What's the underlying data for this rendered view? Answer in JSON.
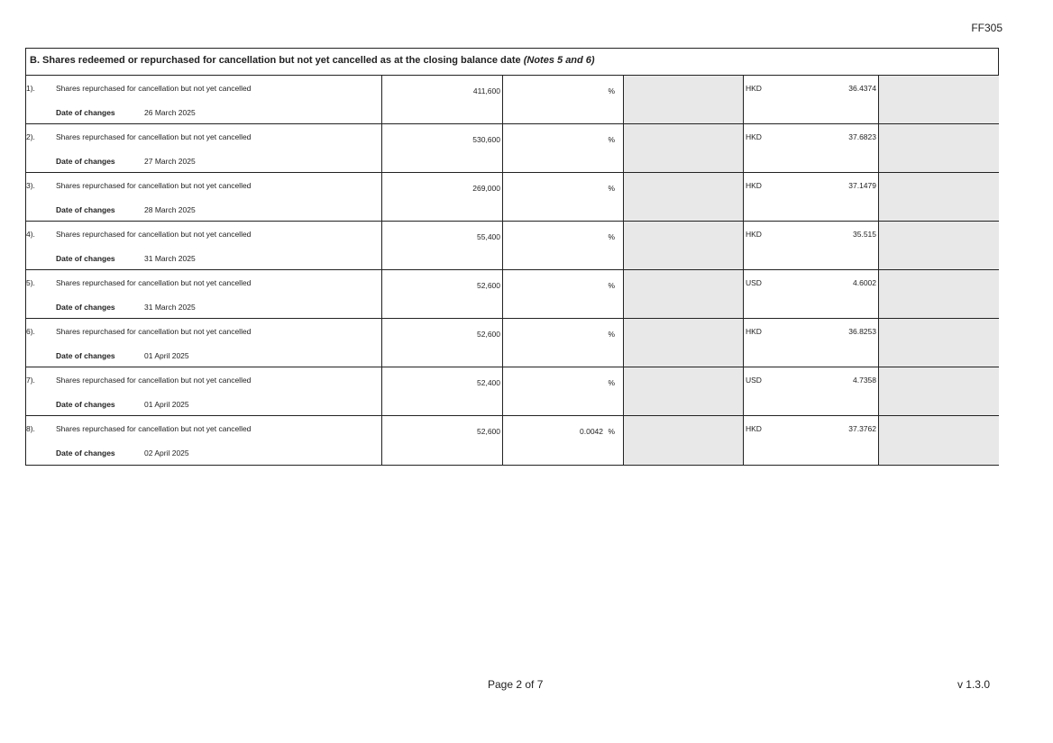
{
  "form_code": "FF305",
  "section": {
    "title": "B. Shares redeemed or repurchased for cancellation but not yet cancelled as at the closing balance date",
    "notes": "(Notes 5 and 6)",
    "date_label": "Date of changes",
    "rows": [
      {
        "num": "1).",
        "desc": "Shares repurchased for cancellation but not yet cancelled",
        "date": "26 March 2025",
        "shares": "411,600",
        "pct": "",
        "pct_sign": "%",
        "currency": "HKD",
        "price": "36.4374"
      },
      {
        "num": "2).",
        "desc": "Shares repurchased for cancellation but not yet cancelled",
        "date": "27 March 2025",
        "shares": "530,600",
        "pct": "",
        "pct_sign": "%",
        "currency": "HKD",
        "price": "37.6823"
      },
      {
        "num": "3).",
        "desc": "Shares repurchased for cancellation but not yet cancelled",
        "date": "28 March 2025",
        "shares": "269,000",
        "pct": "",
        "pct_sign": "%",
        "currency": "HKD",
        "price": "37.1479"
      },
      {
        "num": "4).",
        "desc": "Shares repurchased for cancellation but not yet cancelled",
        "date": "31 March 2025",
        "shares": "55,400",
        "pct": "",
        "pct_sign": "%",
        "currency": "HKD",
        "price": "35.515"
      },
      {
        "num": "5).",
        "desc": "Shares repurchased for cancellation but not yet cancelled",
        "date": "31 March 2025",
        "shares": "52,600",
        "pct": "",
        "pct_sign": "%",
        "currency": "USD",
        "price": "4.6002"
      },
      {
        "num": "6).",
        "desc": "Shares repurchased for cancellation but not yet cancelled",
        "date": "01 April 2025",
        "shares": "52,600",
        "pct": "",
        "pct_sign": "%",
        "currency": "HKD",
        "price": "36.8253"
      },
      {
        "num": "7).",
        "desc": "Shares repurchased for cancellation but not yet cancelled",
        "date": "01 April 2025",
        "shares": "52,400",
        "pct": "",
        "pct_sign": "%",
        "currency": "USD",
        "price": "4.7358"
      },
      {
        "num": "8).",
        "desc": "Shares repurchased for cancellation but not yet cancelled",
        "date": "02 April 2025",
        "shares": "52,600",
        "pct": "0.0042",
        "pct_sign": "%",
        "currency": "HKD",
        "price": "37.3762"
      }
    ]
  },
  "footer": {
    "page": "Page 2 of 7",
    "version": "v 1.3.0"
  }
}
